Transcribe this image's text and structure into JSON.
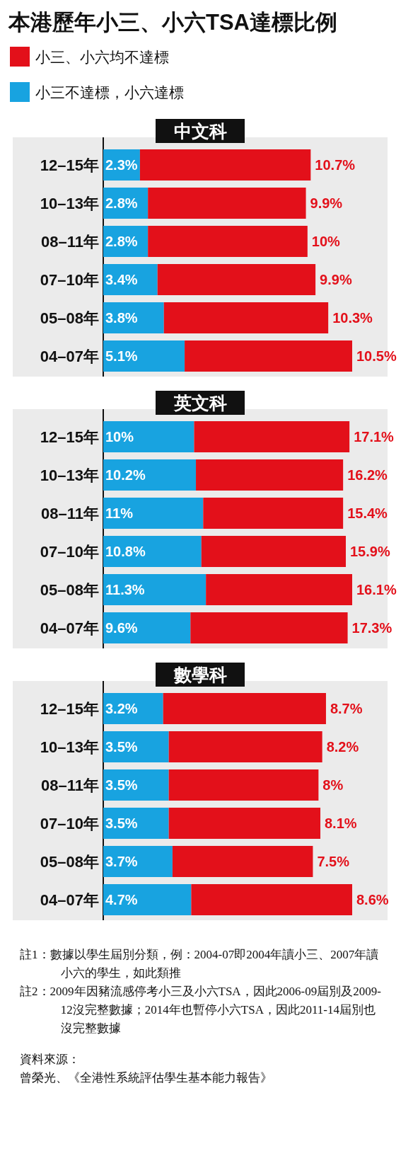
{
  "chart_data": [
    {
      "type": "other",
      "title": "本港歷年小三、小六TSA達標比例"
    },
    {
      "type": "bar",
      "orientation": "horizontal",
      "stacked": true,
      "title": "中文科",
      "legend": "top",
      "categories": [
        "12–15年",
        "10–13年",
        "08–11年",
        "07–10年",
        "05–08年",
        "04–07年"
      ],
      "series": [
        {
          "name": "小三不達標，小六達標",
          "color": "#18a3e0",
          "values": [
            2.3,
            2.8,
            2.8,
            3.4,
            3.8,
            5.1
          ],
          "value_labels": [
            "2.3%",
            "2.8%",
            "2.8%",
            "3.4%",
            "3.8%",
            "5.1%"
          ]
        },
        {
          "name": "小三、小六均不達標",
          "color": "#e3101a",
          "values": [
            10.7,
            9.9,
            10,
            9.9,
            10.3,
            10.5
          ],
          "value_labels": [
            "10.7%",
            "9.9%",
            "10%",
            "9.9%",
            "10.3%",
            "10.5%"
          ]
        }
      ]
    },
    {
      "type": "bar",
      "orientation": "horizontal",
      "stacked": true,
      "title": "英文科",
      "categories": [
        "12–15年",
        "10–13年",
        "08–11年",
        "07–10年",
        "05–08年",
        "04–07年"
      ],
      "series": [
        {
          "color": "#18a3e0",
          "values": [
            10,
            10.2,
            11,
            10.8,
            11.3,
            9.6
          ],
          "value_labels": [
            "10%",
            "10.2%",
            "11%",
            "10.8%",
            "11.3%",
            "9.6%"
          ]
        },
        {
          "color": "#e3101a",
          "values": [
            17.1,
            16.2,
            15.4,
            15.9,
            16.1,
            17.3
          ],
          "value_labels": [
            "17.1%",
            "16.2%",
            "15.4%",
            "15.9%",
            "16.1%",
            "17.3%"
          ]
        }
      ]
    },
    {
      "type": "bar",
      "orientation": "horizontal",
      "stacked": true,
      "title": "數學科",
      "categories": [
        "12–15年",
        "10–13年",
        "08–11年",
        "07–10年",
        "05–08年",
        "04–07年"
      ],
      "series": [
        {
          "color": "#18a3e0",
          "values": [
            3.2,
            3.5,
            3.5,
            3.5,
            3.7,
            4.7
          ],
          "value_labels": [
            "3.2%",
            "3.5%",
            "3.5%",
            "3.5%",
            "3.7%",
            "4.7%"
          ]
        },
        {
          "color": "#e3101a",
          "values": [
            8.7,
            8.2,
            8,
            8.1,
            7.5,
            8.6
          ],
          "value_labels": [
            "8.7%",
            "8.2%",
            "8%",
            "8.1%",
            "7.5%",
            "8.6%"
          ]
        }
      ]
    },
    {
      "type": "other",
      "annotations": [
        "註1：數據以學生屆別分類，例：2004-07即2004年讀小三、2007年讀小六的學生，如此類推",
        "註2：2009年因豬流感停考小三及小六TSA，因此2006-09屆別及2009-12沒完整數據；2014年也暫停小六TSA，因此2011-14屆別也沒完整數據",
        "資料來源：",
        "曾榮光、《全港性系統評估學生基本能力報告》"
      ]
    }
  ]
}
